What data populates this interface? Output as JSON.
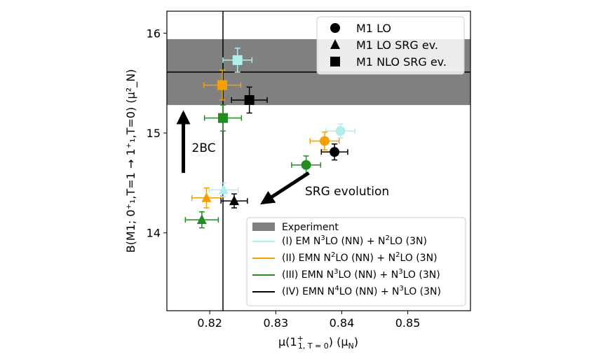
{
  "chart_data": {
    "type": "scatter",
    "xlabel_main": "μ(1",
    "xlabel_sup": "+",
    "xlabel_sub": "1, T = 0",
    "xlabel_tail": ") (μ",
    "xlabel_unit_sub": "N",
    "xlabel_end": ")",
    "ylabel_text": "B(M1; 0⁺₁,T=1 → 1⁺₁,T=0) (μ²_N)",
    "xlim": [
      0.8135,
      0.8595
    ],
    "ylim": [
      13.22,
      16.22
    ],
    "xticks": [
      0.82,
      0.83,
      0.84,
      0.85
    ],
    "xtick_labels": [
      "0.82",
      "0.83",
      "0.84",
      "0.85"
    ],
    "yticks": [
      14,
      15,
      16
    ],
    "ytick_labels": [
      "14",
      "15",
      "16"
    ],
    "experiment": {
      "x": 0.822,
      "y": 15.61,
      "y_low": 15.28,
      "y_high": 15.94,
      "label": "Experiment",
      "color": "#808080"
    },
    "markers_legend": [
      {
        "marker": "circle",
        "label": "M1 LO"
      },
      {
        "marker": "triangle",
        "label": "M1 LO SRG ev."
      },
      {
        "marker": "square",
        "label": "M1 NLO SRG ev."
      }
    ],
    "series": [
      {
        "name": "(I) EM N3LO (NN) + N2LO (3N)",
        "color": "#b0eeee",
        "points": [
          {
            "marker": "circle",
            "x": 0.8398,
            "y": 15.02,
            "xerr": 0.0022,
            "yerr": 0.07
          },
          {
            "marker": "triangle",
            "x": 0.8221,
            "y": 14.43,
            "xerr": 0.0022,
            "yerr": 0.07
          },
          {
            "marker": "square",
            "x": 0.8242,
            "y": 15.73,
            "xerr": 0.0022,
            "yerr": 0.12
          }
        ]
      },
      {
        "name": "(II) EMN N2LO (NN) + N2LO (3N)",
        "color": "#f5a000",
        "points": [
          {
            "marker": "circle",
            "x": 0.8374,
            "y": 14.92,
            "xerr": 0.0022,
            "yerr": 0.09
          },
          {
            "marker": "triangle",
            "x": 0.8195,
            "y": 14.35,
            "xerr": 0.0022,
            "yerr": 0.1
          },
          {
            "marker": "square",
            "x": 0.8219,
            "y": 15.48,
            "xerr": 0.0028,
            "yerr": 0.15
          }
        ]
      },
      {
        "name": "(III) EMN N3LO (NN) + N3LO (3N)",
        "color": "#228b22",
        "points": [
          {
            "marker": "circle",
            "x": 0.8346,
            "y": 14.68,
            "xerr": 0.0022,
            "yerr": 0.09
          },
          {
            "marker": "triangle",
            "x": 0.8188,
            "y": 14.13,
            "xerr": 0.0025,
            "yerr": 0.08
          },
          {
            "marker": "square",
            "x": 0.822,
            "y": 15.15,
            "xerr": 0.0028,
            "yerr": 0.13
          }
        ]
      },
      {
        "name": "(IV) EMN N4LO (NN) + N3LO (3N)",
        "color": "#000000",
        "points": [
          {
            "marker": "circle",
            "x": 0.8389,
            "y": 14.81,
            "xerr": 0.002,
            "yerr": 0.08
          },
          {
            "marker": "triangle",
            "x": 0.8237,
            "y": 14.32,
            "xerr": 0.002,
            "yerr": 0.07
          },
          {
            "marker": "square",
            "x": 0.826,
            "y": 15.33,
            "xerr": 0.0027,
            "yerr": 0.13
          }
        ]
      }
    ],
    "legend_series": [
      {
        "label_parts": [
          "(I) EM N",
          "3",
          "LO (NN) + N",
          "2",
          "LO (3N)"
        ],
        "color": "#b0eeee"
      },
      {
        "label_parts": [
          "(II) EMN N",
          "2",
          "LO (NN) + N",
          "2",
          "LO (3N)"
        ],
        "color": "#f5a000"
      },
      {
        "label_parts": [
          "(III) EMN N",
          "3",
          "LO (NN) + N",
          "3",
          "LO (3N)"
        ],
        "color": "#228b22"
      },
      {
        "label_parts": [
          "(IV) EMN N",
          "4",
          "LO (NN) + N",
          "3",
          "LO (3N)"
        ],
        "color": "#000000"
      }
    ],
    "annotations": [
      {
        "text": "2BC",
        "arrow_from": [
          0.816,
          14.6
        ],
        "arrow_to": [
          0.816,
          15.2
        ]
      },
      {
        "text": "SRG evolution",
        "arrow_from": [
          0.835,
          14.6
        ],
        "arrow_to": [
          0.828,
          14.3
        ]
      }
    ],
    "grid": false,
    "legend_placement": [
      "top-right",
      "bottom-right"
    ]
  }
}
